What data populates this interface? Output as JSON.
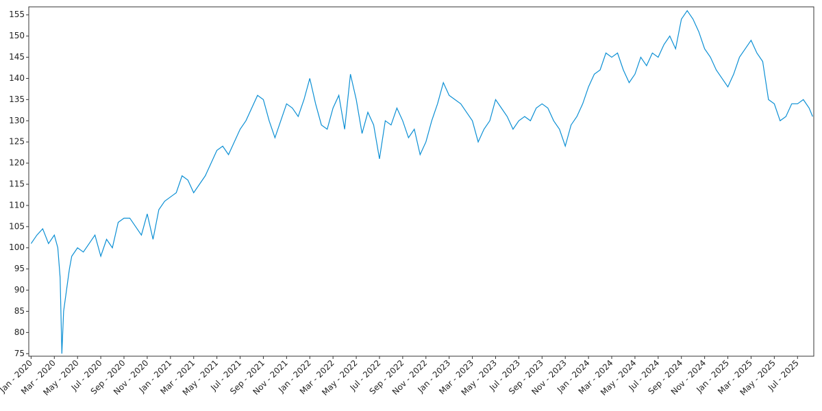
{
  "chart_data": {
    "type": "line",
    "color": "#0b8fd4",
    "x": [
      0,
      0.5,
      1,
      1.5,
      2,
      2.3,
      2.5,
      2.65,
      2.8,
      3,
      3.3,
      3.5,
      4,
      4.5,
      5,
      5.5,
      6,
      6.5,
      7,
      7.5,
      8,
      8.5,
      9,
      9.5,
      10,
      10.5,
      11,
      11.5,
      12,
      12.5,
      13,
      13.5,
      14,
      14.5,
      15,
      15.5,
      16,
      16.5,
      17,
      17.5,
      18,
      18.5,
      19,
      19.5,
      20,
      20.5,
      21,
      21.5,
      22,
      22.5,
      23,
      23.5,
      24,
      24.5,
      25,
      25.5,
      26,
      26.5,
      27,
      27.5,
      28,
      28.5,
      29,
      29.5,
      30,
      30.5,
      31,
      31.5,
      32,
      32.5,
      33,
      33.5,
      34,
      34.5,
      35,
      35.5,
      36,
      36.5,
      37,
      37.5,
      38,
      38.5,
      39,
      39.5,
      40,
      40.5,
      41,
      41.5,
      42,
      42.5,
      43,
      43.5,
      44,
      44.5,
      45,
      45.5,
      46,
      46.5,
      47,
      47.5,
      48,
      48.5,
      49,
      49.5,
      50,
      50.5,
      51,
      51.5,
      52,
      52.5,
      53,
      53.5,
      54,
      54.5,
      55,
      55.5,
      56,
      56.5,
      57,
      57.5,
      58,
      58.5,
      59,
      59.5,
      60,
      60.5,
      61,
      61.5,
      62,
      62.5,
      63,
      63.5,
      64,
      64.5,
      65,
      65.5,
      66,
      66.5,
      67,
      67.3
    ],
    "values": [
      101,
      103,
      104.5,
      101,
      103,
      100,
      93,
      75,
      85,
      89,
      95,
      98,
      100,
      99,
      101,
      103,
      98,
      102,
      100,
      106,
      107,
      107,
      105,
      103,
      108,
      102,
      109,
      111,
      112,
      113,
      117,
      116,
      113,
      115,
      117,
      120,
      123,
      124,
      122,
      125,
      128,
      130,
      133,
      136,
      135,
      130,
      126,
      130,
      134,
      133,
      131,
      135,
      140,
      134,
      129,
      128,
      133,
      136,
      128,
      141,
      135,
      127,
      132,
      129,
      121,
      130,
      129,
      133,
      130,
      126,
      128,
      122,
      125,
      130,
      134,
      139,
      136,
      135,
      134,
      132,
      130,
      125,
      128,
      130,
      135,
      133,
      131,
      128,
      130,
      131,
      130,
      133,
      134,
      133,
      130,
      128,
      124,
      129,
      131,
      134,
      138,
      141,
      142,
      146,
      145,
      146,
      142,
      139,
      141,
      145,
      143,
      146,
      145,
      148,
      150,
      147,
      154,
      156,
      154,
      151,
      147,
      145,
      142,
      140,
      138,
      141,
      145,
      147,
      149,
      146,
      144,
      135,
      134,
      130,
      131,
      134,
      134,
      135,
      133,
      131
    ],
    "xlim": [
      -0.2,
      67.4
    ],
    "xticks": [
      {
        "value": 0,
        "label": "Jan - 2020"
      },
      {
        "value": 2,
        "label": "Mar - 2020"
      },
      {
        "value": 4,
        "label": "May - 2020"
      },
      {
        "value": 6,
        "label": "Jul - 2020"
      },
      {
        "value": 8,
        "label": "Sep - 2020"
      },
      {
        "value": 10,
        "label": "Nov - 2020"
      },
      {
        "value": 12,
        "label": "Jan - 2021"
      },
      {
        "value": 14,
        "label": "Mar - 2021"
      },
      {
        "value": 16,
        "label": "May - 2021"
      },
      {
        "value": 18,
        "label": "Jul - 2021"
      },
      {
        "value": 20,
        "label": "Sep - 2021"
      },
      {
        "value": 22,
        "label": "Nov - 2021"
      },
      {
        "value": 24,
        "label": "Jan - 2022"
      },
      {
        "value": 26,
        "label": "Mar - 2022"
      },
      {
        "value": 28,
        "label": "May - 2022"
      },
      {
        "value": 30,
        "label": "Jul - 2022"
      },
      {
        "value": 32,
        "label": "Sep - 2022"
      },
      {
        "value": 34,
        "label": "Nov - 2022"
      },
      {
        "value": 36,
        "label": "Jan - 2023"
      },
      {
        "value": 38,
        "label": "Mar - 2023"
      },
      {
        "value": 40,
        "label": "May - 2023"
      },
      {
        "value": 42,
        "label": "Jul - 2023"
      },
      {
        "value": 44,
        "label": "Sep - 2023"
      },
      {
        "value": 46,
        "label": "Nov - 2023"
      },
      {
        "value": 48,
        "label": "Jan - 2024"
      },
      {
        "value": 50,
        "label": "Mar - 2024"
      },
      {
        "value": 52,
        "label": "May - 2024"
      },
      {
        "value": 54,
        "label": "Jul - 2024"
      },
      {
        "value": 56,
        "label": "Sep - 2024"
      },
      {
        "value": 58,
        "label": "Nov - 2024"
      },
      {
        "value": 60,
        "label": "Jan - 2025"
      },
      {
        "value": 62,
        "label": "Mar - 2025"
      },
      {
        "value": 64,
        "label": "May - 2025"
      },
      {
        "value": 66,
        "label": "Jul - 2025"
      }
    ],
    "ylim": [
      74.4,
      156.9
    ],
    "yticks": [
      75,
      80,
      85,
      90,
      95,
      100,
      105,
      110,
      115,
      120,
      125,
      130,
      135,
      140,
      145,
      150,
      155
    ]
  }
}
